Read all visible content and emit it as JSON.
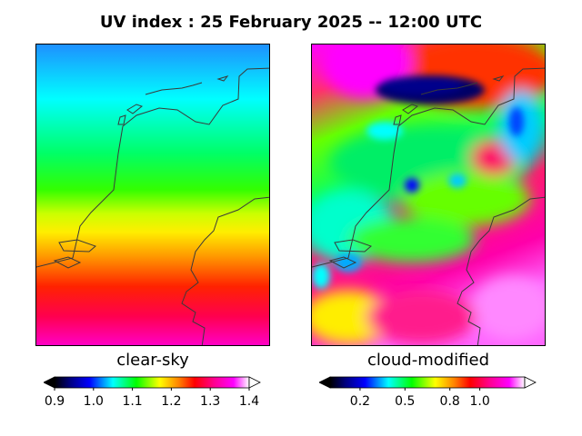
{
  "title": "UV index :  25 February 2025  --  12:00 UTC",
  "panels": [
    {
      "label": "clear-sky",
      "colorbar": {
        "min": 0.9,
        "max": 1.4,
        "ticks": [
          0.9,
          1.0,
          1.1,
          1.2,
          1.3,
          1.4
        ]
      }
    },
    {
      "label": "cloud-modified",
      "colorbar": {
        "min": 0.0,
        "max": 1.3,
        "ticks": [
          0.2,
          0.5,
          0.8,
          1.0
        ]
      }
    }
  ],
  "colors": {
    "coastline": "#3a3a3a",
    "rainbow": [
      "#000000",
      "#000080",
      "#0000ff",
      "#00ffff",
      "#00ff00",
      "#ffff00",
      "#ff8000",
      "#ff0000",
      "#ff0090",
      "#ff00ff",
      "#ffffff"
    ]
  }
}
